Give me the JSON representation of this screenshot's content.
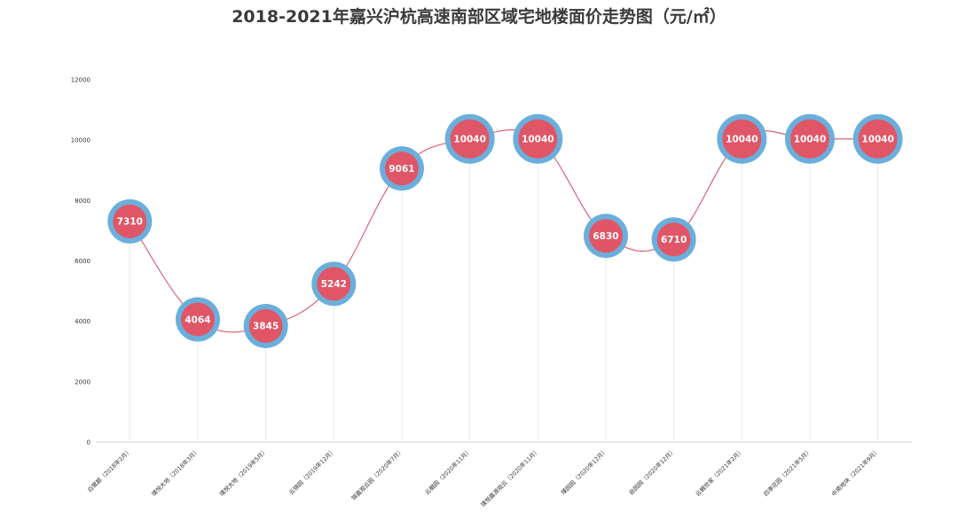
{
  "chart_data": {
    "type": "line",
    "title": "2018-2021年嘉兴沪杭高速南部区域宅地楼面价走势图（元/㎡）",
    "xlabel": "",
    "ylabel": "",
    "ylim": [
      0,
      12000
    ],
    "yticks": [
      "0",
      "2000",
      "4000",
      "6000",
      "8000",
      "10000",
      "12000"
    ],
    "categories": [
      "白鹭郡（2018年2月）",
      "璞悦大地（2018年3月）",
      "璞悦大地（2019年5月）",
      "云锦园（2019年12月）",
      "锦嘉观云园（2020年7月）",
      "云樾园（2020年11月）",
      "璞悦嘉源观云（2020年11月）",
      "璞园园（2020年12月）",
      "启园园（2020年12月）",
      "云樾世家（2021年2月）",
      "四季花园（2021年5月）",
      "中南地块（2021年9月）"
    ],
    "series": [
      {
        "values": [
          7310,
          4064,
          3845,
          5242,
          9061,
          10040,
          10040,
          6830,
          6710,
          10040,
          10040,
          10040
        ],
        "labels": [
          "7310",
          "4064",
          "3845",
          "5242",
          "9061",
          "10040",
          "10040",
          "6830",
          "6710",
          "10040",
          "10040",
          "10040"
        ]
      }
    ],
    "colors": {
      "line": "#d9536a",
      "bubble_fill": "#e05666",
      "bubble_ring": "#6aafdc",
      "grid": "#e8e8e8"
    },
    "grid": false,
    "legend": "none"
  }
}
